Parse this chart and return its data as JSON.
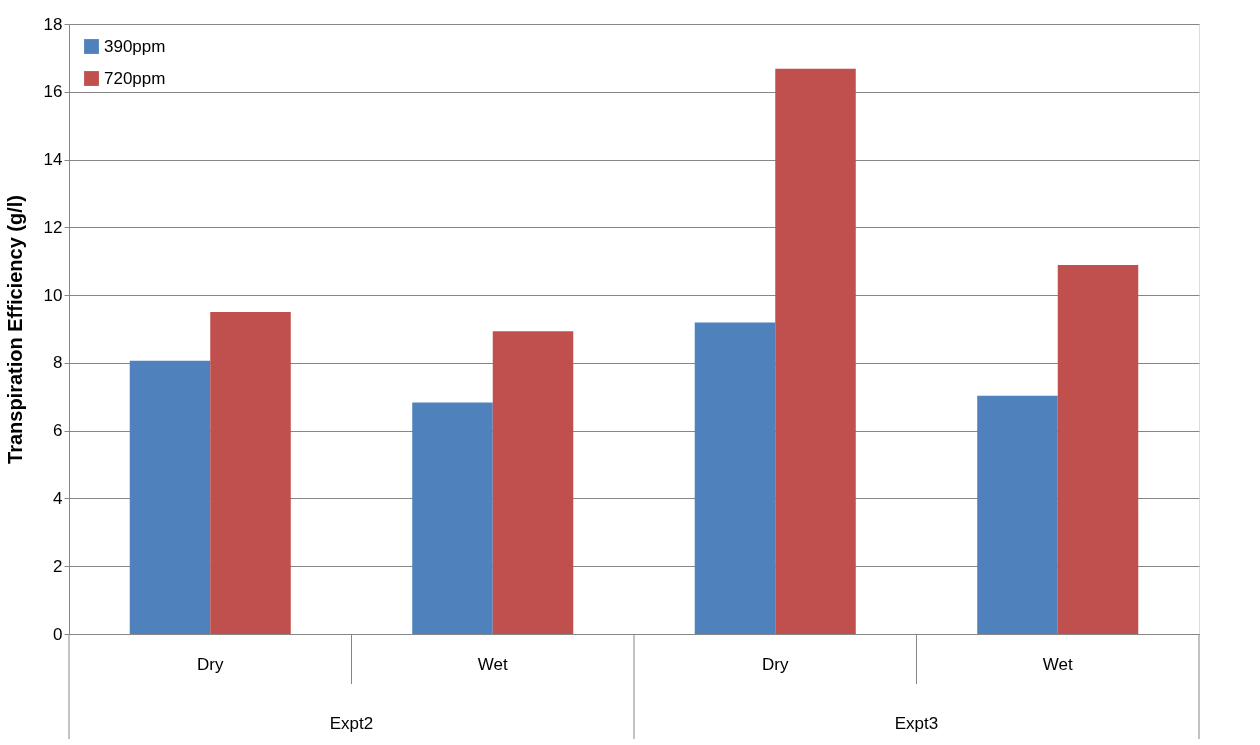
{
  "chart_data": {
    "type": "bar",
    "ylabel": "Transpiration Efficiency (g/l)",
    "categories": [
      "Dry",
      "Wet",
      "Dry",
      "Wet"
    ],
    "annotations": [
      "Expt2",
      "Expt3"
    ],
    "series": [
      {
        "name": "390ppm",
        "color": "#4f81bd",
        "values": [
          8.06,
          6.83,
          9.19,
          7.03
        ]
      },
      {
        "name": "720ppm",
        "color": "#c0504d",
        "values": [
          9.5,
          8.93,
          16.68,
          10.89
        ]
      }
    ],
    "ylim": [
      0,
      18
    ],
    "yticks": [
      0,
      2,
      4,
      6,
      8,
      10,
      12,
      14,
      16,
      18
    ],
    "grid": "y",
    "legend": "top left"
  }
}
